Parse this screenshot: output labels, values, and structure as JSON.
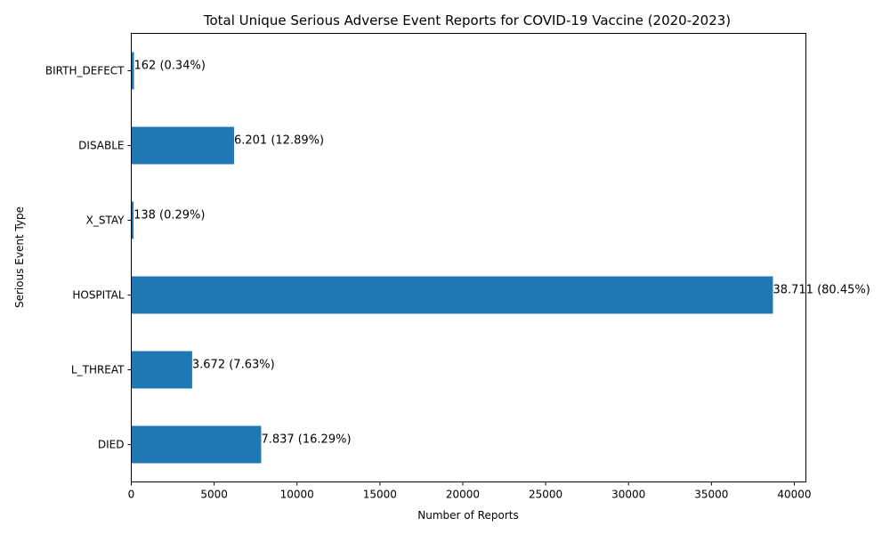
{
  "chart_data": {
    "type": "bar",
    "orientation": "horizontal",
    "title": "Total Unique Serious Adverse Event Reports for COVID-19 Vaccine (2020-2023)",
    "xlabel": "Number of Reports",
    "ylabel": "Serious Event Type",
    "categories": [
      "DIED",
      "L_THREAT",
      "HOSPITAL",
      "X_STAY",
      "DISABLE",
      "BIRTH_DEFECT"
    ],
    "values": [
      7837,
      3672,
      38711,
      138,
      6201,
      162
    ],
    "data_labels": [
      "7.837 (16.29%)",
      "3.672 (7.63%)",
      "38.711 (80.45%)",
      "138 (0.29%)",
      "6.201 (12.89%)",
      "162 (0.34%)"
    ],
    "xlim": [
      0,
      40700
    ],
    "xticks": [
      0,
      5000,
      10000,
      15000,
      20000,
      25000,
      30000,
      35000,
      40000
    ],
    "grid": false,
    "bar_color": "#1f77b4"
  }
}
